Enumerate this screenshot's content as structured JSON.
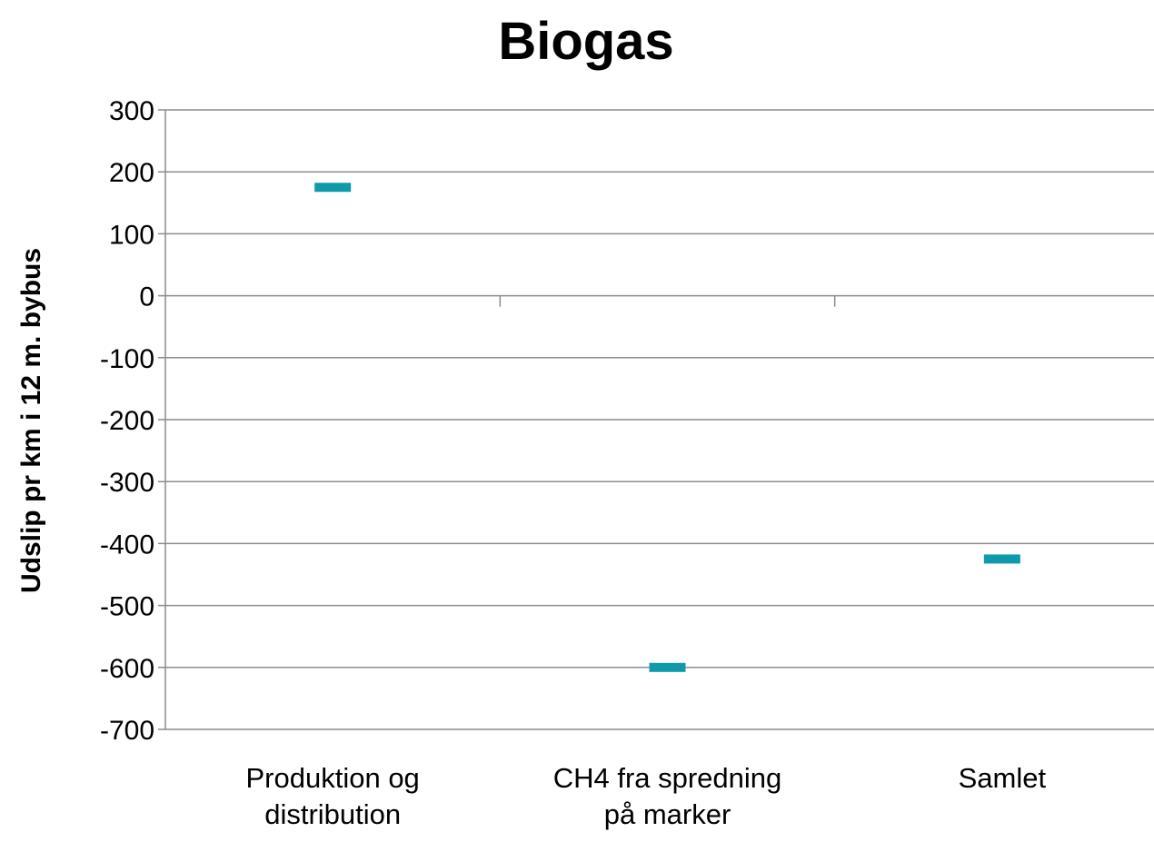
{
  "chart_data": {
    "type": "scatter",
    "marker": "dash",
    "title": "Biogas",
    "xlabel": "",
    "ylabel": "Udslip pr km i 12 m. bybus",
    "categories": [
      [
        "Produktion og",
        "distribution"
      ],
      [
        "CH4 fra spredning",
        "på marker"
      ],
      [
        "Samlet"
      ]
    ],
    "values": [
      175,
      -600,
      -425
    ],
    "ylim": [
      -700,
      300
    ],
    "yticks": [
      300,
      200,
      100,
      0,
      -100,
      -200,
      -300,
      -400,
      -500,
      -600,
      -700
    ],
    "grid": true,
    "legend": "none",
    "colors": {
      "marker": "#0f9aab",
      "grid": "#8c8c8c",
      "axis": "#8c8c8c",
      "text": "#000000"
    }
  }
}
